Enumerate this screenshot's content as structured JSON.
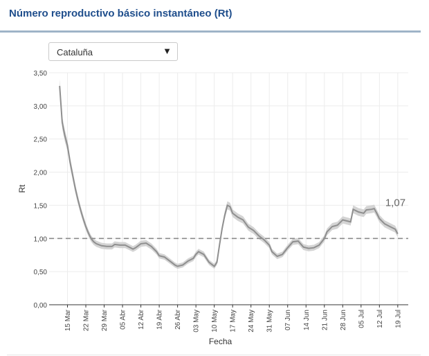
{
  "header": {
    "title": "Número reproductivo básico instantáneo (Rt)"
  },
  "region_select": {
    "value": "Cataluña",
    "caret": "▼"
  },
  "chart_data": {
    "type": "line",
    "title": "",
    "xlabel": "Fecha",
    "ylabel": "Rt",
    "ylim": [
      0,
      3.5
    ],
    "xlim_day": [
      0,
      137
    ],
    "reference_line": 1.0,
    "last_value_label": "1,07",
    "y_ticks": [
      {
        "value": 0.0,
        "label": "0,00"
      },
      {
        "value": 0.5,
        "label": "0,50"
      },
      {
        "value": 1.0,
        "label": "1,00"
      },
      {
        "value": 1.5,
        "label": "1,50"
      },
      {
        "value": 2.0,
        "label": "2,00"
      },
      {
        "value": 2.5,
        "label": "2,50"
      },
      {
        "value": 3.0,
        "label": "3,00"
      },
      {
        "value": 3.5,
        "label": "3,50"
      }
    ],
    "x_ticks": [
      {
        "date": "2020-03-15",
        "label": "15 Mar"
      },
      {
        "date": "2020-03-22",
        "label": "22 Mar"
      },
      {
        "date": "2020-03-29",
        "label": "29 Mar"
      },
      {
        "date": "2020-04-05",
        "label": "05 Abr"
      },
      {
        "date": "2020-04-12",
        "label": "12 Abr"
      },
      {
        "date": "2020-04-19",
        "label": "19 Abr"
      },
      {
        "date": "2020-04-26",
        "label": "26 Abr"
      },
      {
        "date": "2020-05-03",
        "label": "03 May"
      },
      {
        "date": "2020-05-10",
        "label": "10 May"
      },
      {
        "date": "2020-05-17",
        "label": "17 May"
      },
      {
        "date": "2020-05-24",
        "label": "24 May"
      },
      {
        "date": "2020-05-31",
        "label": "31 May"
      },
      {
        "date": "2020-06-07",
        "label": "07 Jun"
      },
      {
        "date": "2020-06-14",
        "label": "14 Jun"
      },
      {
        "date": "2020-06-21",
        "label": "21 Jun"
      },
      {
        "date": "2020-06-28",
        "label": "28 Jun"
      },
      {
        "date": "2020-07-05",
        "label": "05 Jul"
      },
      {
        "date": "2020-07-12",
        "label": "12 Jul"
      },
      {
        "date": "2020-07-19",
        "label": "19 Jul"
      }
    ],
    "series": [
      {
        "points": [
          [
            "2020-03-12",
            3.3
          ],
          [
            "2020-03-13",
            2.75
          ],
          [
            "2020-03-14",
            2.55
          ],
          [
            "2020-03-15",
            2.4
          ],
          [
            "2020-03-16",
            2.15
          ],
          [
            "2020-03-17",
            1.95
          ],
          [
            "2020-03-18",
            1.75
          ],
          [
            "2020-03-19",
            1.58
          ],
          [
            "2020-03-20",
            1.43
          ],
          [
            "2020-03-21",
            1.3
          ],
          [
            "2020-03-22",
            1.18
          ],
          [
            "2020-03-23",
            1.08
          ],
          [
            "2020-03-24",
            1.0
          ],
          [
            "2020-03-25",
            0.95
          ],
          [
            "2020-03-26",
            0.92
          ],
          [
            "2020-03-28",
            0.89
          ],
          [
            "2020-03-30",
            0.88
          ],
          [
            "2020-04-01",
            0.88
          ],
          [
            "2020-04-02",
            0.91
          ],
          [
            "2020-04-04",
            0.9
          ],
          [
            "2020-04-06",
            0.9
          ],
          [
            "2020-04-08",
            0.86
          ],
          [
            "2020-04-09",
            0.84
          ],
          [
            "2020-04-10",
            0.86
          ],
          [
            "2020-04-12",
            0.92
          ],
          [
            "2020-04-14",
            0.93
          ],
          [
            "2020-04-16",
            0.88
          ],
          [
            "2020-04-18",
            0.8
          ],
          [
            "2020-04-19",
            0.74
          ],
          [
            "2020-04-21",
            0.72
          ],
          [
            "2020-04-23",
            0.66
          ],
          [
            "2020-04-25",
            0.6
          ],
          [
            "2020-04-26",
            0.58
          ],
          [
            "2020-04-28",
            0.6
          ],
          [
            "2020-04-30",
            0.66
          ],
          [
            "2020-05-02",
            0.7
          ],
          [
            "2020-05-03",
            0.76
          ],
          [
            "2020-05-04",
            0.8
          ],
          [
            "2020-05-06",
            0.76
          ],
          [
            "2020-05-08",
            0.64
          ],
          [
            "2020-05-10",
            0.58
          ],
          [
            "2020-05-11",
            0.64
          ],
          [
            "2020-05-12",
            0.9
          ],
          [
            "2020-05-13",
            1.15
          ],
          [
            "2020-05-14",
            1.35
          ],
          [
            "2020-05-15",
            1.5
          ],
          [
            "2020-05-16",
            1.48
          ],
          [
            "2020-05-17",
            1.38
          ],
          [
            "2020-05-19",
            1.32
          ],
          [
            "2020-05-21",
            1.28
          ],
          [
            "2020-05-23",
            1.17
          ],
          [
            "2020-05-25",
            1.12
          ],
          [
            "2020-05-27",
            1.04
          ],
          [
            "2020-05-29",
            0.98
          ],
          [
            "2020-05-31",
            0.9
          ],
          [
            "2020-06-01",
            0.8
          ],
          [
            "2020-06-03",
            0.73
          ],
          [
            "2020-06-05",
            0.76
          ],
          [
            "2020-06-07",
            0.86
          ],
          [
            "2020-06-09",
            0.95
          ],
          [
            "2020-06-11",
            0.96
          ],
          [
            "2020-06-13",
            0.87
          ],
          [
            "2020-06-15",
            0.85
          ],
          [
            "2020-06-17",
            0.86
          ],
          [
            "2020-06-19",
            0.9
          ],
          [
            "2020-06-21",
            1.0
          ],
          [
            "2020-06-22",
            1.1
          ],
          [
            "2020-06-24",
            1.18
          ],
          [
            "2020-06-26",
            1.2
          ],
          [
            "2020-06-28",
            1.28
          ],
          [
            "2020-06-30",
            1.26
          ],
          [
            "2020-07-01",
            1.25
          ],
          [
            "2020-07-02",
            1.44
          ],
          [
            "2020-07-04",
            1.4
          ],
          [
            "2020-07-06",
            1.38
          ],
          [
            "2020-07-07",
            1.43
          ],
          [
            "2020-07-09",
            1.44
          ],
          [
            "2020-07-10",
            1.45
          ],
          [
            "2020-07-11",
            1.38
          ],
          [
            "2020-07-12",
            1.3
          ],
          [
            "2020-07-14",
            1.22
          ],
          [
            "2020-07-16",
            1.18
          ],
          [
            "2020-07-18",
            1.14
          ],
          [
            "2020-07-19",
            1.07
          ]
        ]
      }
    ]
  }
}
